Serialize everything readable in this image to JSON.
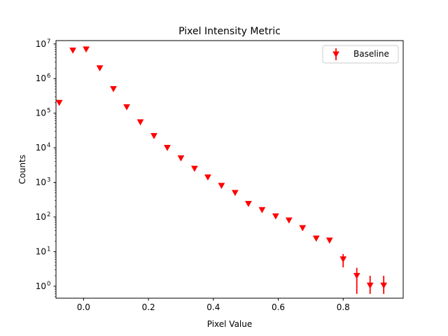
{
  "chart_data": {
    "type": "scatter",
    "title": "Pixel Intensity Metric",
    "xlabel": "Pixel Value",
    "ylabel": "Counts",
    "xlim": [
      -0.085,
      0.985
    ],
    "ylim": [
      0.45,
      12500000
    ],
    "yscale": "log",
    "xticks": [
      0.0,
      0.2,
      0.4,
      0.6,
      0.8
    ],
    "xtick_labels": [
      "0.0",
      "0.2",
      "0.4",
      "0.6",
      "0.8"
    ],
    "yticks": [
      1,
      10,
      100,
      1000,
      10000,
      100000,
      1000000,
      10000000
    ],
    "ytick_label_exponents": [
      "0",
      "1",
      "2",
      "3",
      "4",
      "5",
      "6",
      "7"
    ],
    "ytick_label_base": "10",
    "grid": false,
    "legend": {
      "position": "top-right",
      "entries": [
        "Baseline"
      ]
    },
    "series": [
      {
        "name": "Baseline",
        "color": "#ff0000",
        "marker": "triangle-down",
        "x": [
          -0.075,
          -0.033,
          0.008,
          0.05,
          0.092,
          0.133,
          0.175,
          0.217,
          0.258,
          0.3,
          0.342,
          0.383,
          0.425,
          0.467,
          0.508,
          0.55,
          0.592,
          0.633,
          0.675,
          0.717,
          0.758,
          0.8,
          0.842,
          0.883,
          0.925
        ],
        "y": [
          200000,
          6500000,
          7000000,
          2000000,
          500000,
          150000,
          55000,
          22000,
          10000,
          5000,
          2500,
          1400,
          800,
          500,
          240,
          160,
          105,
          80,
          48,
          24,
          21,
          6,
          2,
          1.05,
          1.05
        ],
        "yerr_low": [
          null,
          null,
          null,
          null,
          null,
          null,
          null,
          null,
          null,
          null,
          null,
          null,
          null,
          null,
          null,
          null,
          null,
          null,
          null,
          null,
          null,
          3.5,
          0.6,
          0.6,
          0.6
        ],
        "yerr_high": [
          null,
          null,
          null,
          null,
          null,
          null,
          null,
          null,
          null,
          null,
          null,
          null,
          null,
          null,
          null,
          null,
          null,
          null,
          null,
          null,
          null,
          8.5,
          3.4,
          2.0,
          2.0
        ]
      }
    ]
  }
}
